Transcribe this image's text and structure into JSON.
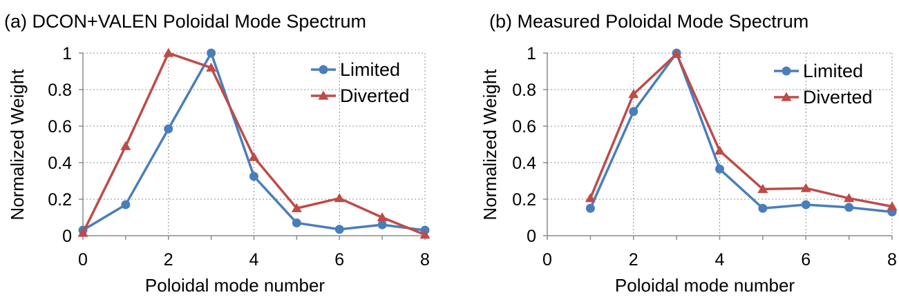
{
  "chart_data": [
    {
      "type": "line",
      "title": "(a) DCON+VALEN Poloidal Mode Spectrum",
      "xlabel": "Poloidal mode number",
      "ylabel": "Normalized Weight",
      "xlim": [
        0,
        8
      ],
      "ylim": [
        0,
        1
      ],
      "xticks": [
        "0",
        "2",
        "4",
        "6",
        "8"
      ],
      "yticks": [
        "0",
        "0.2",
        "0.4",
        "0.6",
        "0.8",
        "1"
      ],
      "legend_position": "top-right",
      "grid": "dashed horizontal and vertical",
      "series": [
        {
          "name": "Limited",
          "marker": "circle",
          "color": "#4a7ebb",
          "x": [
            0,
            1,
            2,
            3,
            4,
            5,
            6,
            7,
            8
          ],
          "values": [
            0.03,
            0.17,
            0.585,
            1.0,
            0.325,
            0.07,
            0.035,
            0.06,
            0.03
          ]
        },
        {
          "name": "Diverted",
          "marker": "triangle",
          "color": "#be4b48",
          "x": [
            0,
            1,
            2,
            3,
            4,
            5,
            6,
            7,
            8
          ],
          "values": [
            0.015,
            0.49,
            1.0,
            0.92,
            0.43,
            0.15,
            0.205,
            0.1,
            0.005
          ]
        }
      ]
    },
    {
      "type": "line",
      "title": "(b) Measured Poloidal Mode Spectrum",
      "xlabel": "Poloidal mode number",
      "ylabel": "Normalized Weight",
      "xlim": [
        0,
        8
      ],
      "ylim": [
        0,
        1
      ],
      "xticks": [
        "0",
        "2",
        "4",
        "6",
        "8"
      ],
      "yticks": [
        "0",
        "0.2",
        "0.4",
        "0.6",
        "0.8",
        "1"
      ],
      "legend_position": "top-right",
      "grid": "dashed horizontal and vertical",
      "series": [
        {
          "name": "Limited",
          "marker": "circle",
          "color": "#4a7ebb",
          "x": [
            1,
            2,
            3,
            4,
            5,
            6,
            7,
            8
          ],
          "values": [
            0.15,
            0.68,
            1.0,
            0.365,
            0.15,
            0.17,
            0.155,
            0.13
          ]
        },
        {
          "name": "Diverted",
          "marker": "triangle",
          "color": "#be4b48",
          "x": [
            1,
            2,
            3,
            4,
            5,
            6,
            7,
            8
          ],
          "values": [
            0.205,
            0.775,
            0.995,
            0.465,
            0.255,
            0.26,
            0.205,
            0.16
          ]
        }
      ]
    }
  ]
}
